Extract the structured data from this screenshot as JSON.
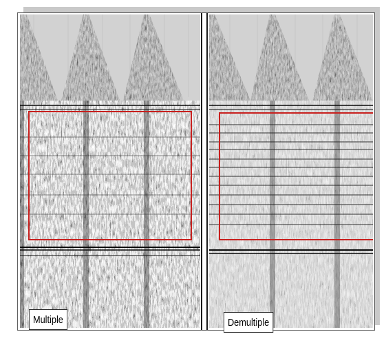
{
  "figure": {
    "left_panel": {
      "label": "Multiple"
    },
    "right_panel": {
      "label": "Demultiple"
    },
    "colors": {
      "highlight_box": "#c8201e",
      "background_fill": "#cfcfcf",
      "trace_ink": "#1a1a1a",
      "frame_border": "#606060",
      "drop_shadow": "#c9c9c9"
    }
  }
}
